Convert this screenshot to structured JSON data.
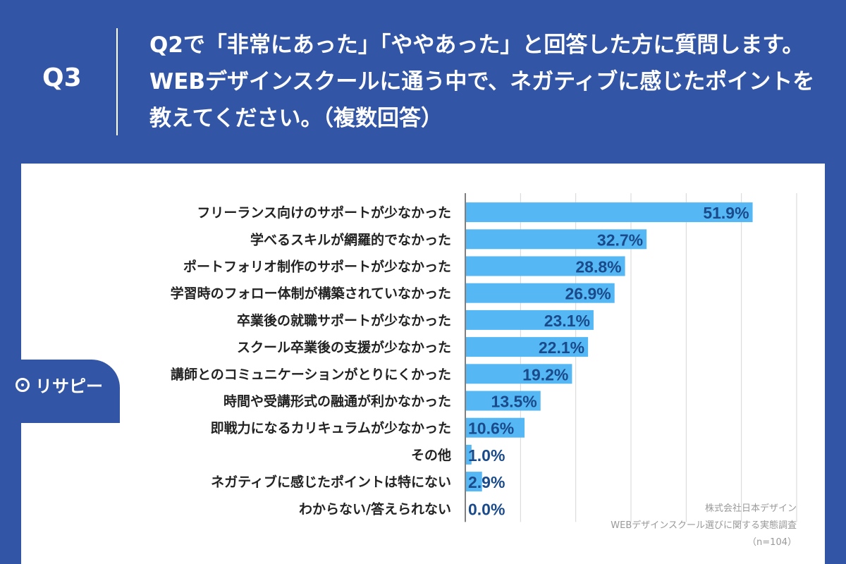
{
  "header": {
    "question_label": "Q3",
    "question_text": "Q2で「非常にあった」「ややあった」と回答した方に質問します。WEBデザインスクールに通う中で、ネガティブに感じたポイントを教えてください。（複数回答）"
  },
  "chart_data": {
    "type": "bar",
    "orientation": "horizontal",
    "categories": [
      "フリーランス向けのサポートが少なかった",
      "学べるスキルが網羅的でなかった",
      "ポートフォリオ制作のサポートが少なかった",
      "学習時のフォロー体制が構築されていなかった",
      "卒業後の就職サポートが少なかった",
      "スクール卒業後の支援が少なかった",
      "講師とのコミュニケーションがとりにくかった",
      "時間や受講形式の融通が利かなかった",
      "即戦力になるカリキュラムが少なかった",
      "その他",
      "ネガティブに感じたポイントは特にない",
      "わからない/答えられない"
    ],
    "values": [
      51.9,
      32.7,
      28.8,
      26.9,
      23.1,
      22.1,
      19.2,
      13.5,
      10.6,
      1.0,
      2.9,
      0.0
    ],
    "value_labels": [
      "51.9%",
      "32.7%",
      "28.8%",
      "26.9%",
      "23.1%",
      "22.1%",
      "19.2%",
      "13.5%",
      "10.6%",
      "1.0%",
      "2.9%",
      "0.0%"
    ],
    "xlim": [
      0,
      60
    ],
    "grid": true,
    "bar_color": "#55b8f5",
    "label_color": "#1a4a8a"
  },
  "source": {
    "line1": "株式会社日本デザイン",
    "line2": "WEBデザインスクール選びに関する実態調査",
    "line3": "（n=104）"
  },
  "brand": {
    "name": "リサピー"
  }
}
